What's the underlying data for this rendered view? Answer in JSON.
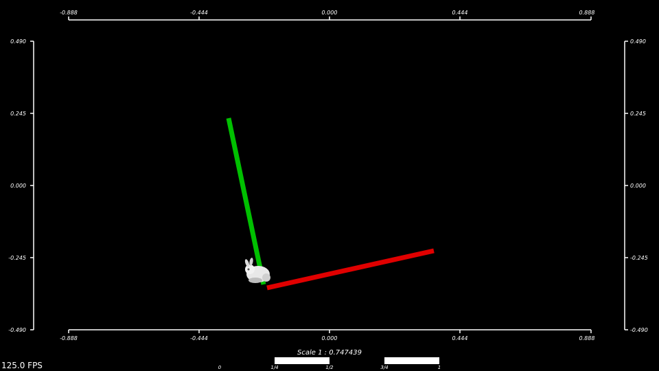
{
  "viewer": {
    "fps": "125.0 FPS",
    "scale_label": "Scale 1 : 0.747439"
  },
  "rulers": {
    "x_ticks": [
      "-0.888",
      "-0.444",
      "0.000",
      "0.444",
      "0.888"
    ],
    "y_ticks": [
      "0.490",
      "0.245",
      "0.000",
      "-0.245",
      "-0.490"
    ]
  },
  "scale_bar": {
    "labels": [
      "0",
      "1/4",
      "1/2",
      "3/4",
      "1"
    ]
  },
  "axes": {
    "x_axis_color": "#e00000",
    "y_axis_color": "#00c000"
  },
  "model": {
    "icon": "bunny-model-icon"
  }
}
